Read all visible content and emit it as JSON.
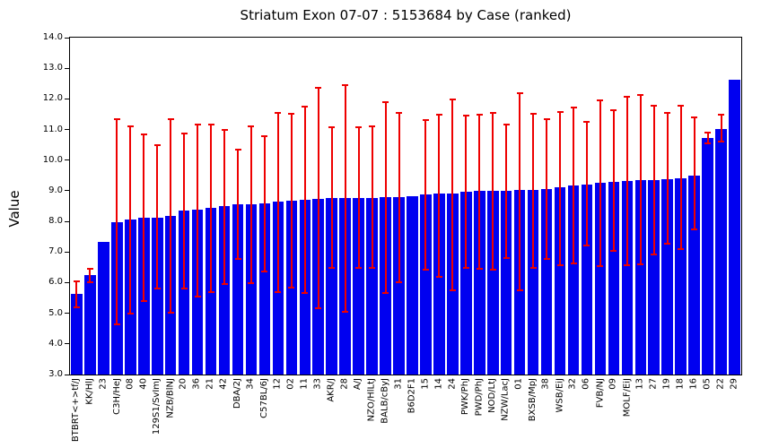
{
  "chart_data": {
    "type": "bar",
    "title": "Striatum Exon 07-07 : 5153684 by Case (ranked)",
    "xlabel": "",
    "ylabel": "Value",
    "ylim": [
      3.0,
      14.0
    ],
    "yticks": [
      3,
      4,
      5,
      6,
      7,
      8,
      9,
      10,
      11,
      12,
      13,
      14
    ],
    "ytick_labels": [
      "3.0",
      "4.0",
      "5.0",
      "6.0",
      "7.0",
      "8.0",
      "9.0",
      "10.0",
      "11.0",
      "12.0",
      "13.0",
      "14.0"
    ],
    "grid": false,
    "legend": false,
    "bar_color": "#0000f0",
    "error_color": "#ee0000",
    "categories": [
      "BTBRT<+>tf/J",
      "KK/HlJ",
      "23",
      "C3H/HeJ",
      "08",
      "40",
      "129S1/SvImJ",
      "NZB/BlNJ",
      "20",
      "36",
      "21",
      "42",
      "DBA/2J",
      "34",
      "C57BL/6J",
      "12",
      "02",
      "11",
      "33",
      "AKR/J",
      "28",
      "A/J",
      "NZO/HlLtJ",
      "BALB/cByJ",
      "31",
      "B6D2F1",
      "15",
      "14",
      "24",
      "PWK/PhJ",
      "PWD/PhJ",
      "NOD/LtJ",
      "NZW/LacJ",
      "01",
      "BXSB/MpJ",
      "38",
      "WSB/EiJ",
      "32",
      "06",
      "FVB/NJ",
      "09",
      "MOLF/EiJ",
      "13",
      "27",
      "19",
      "18",
      "16",
      "05",
      "22",
      "29"
    ],
    "values": [
      5.63,
      6.25,
      7.32,
      7.98,
      8.05,
      8.12,
      8.13,
      8.18,
      8.36,
      8.37,
      8.45,
      8.49,
      8.55,
      8.57,
      8.59,
      8.65,
      8.69,
      8.71,
      8.74,
      8.75,
      8.76,
      8.76,
      8.77,
      8.78,
      8.8,
      8.83,
      8.87,
      8.9,
      8.91,
      8.97,
      8.99,
      9.0,
      9.01,
      9.02,
      9.04,
      9.07,
      9.1,
      9.17,
      9.2,
      9.27,
      9.3,
      9.33,
      9.35,
      9.36,
      9.39,
      9.41,
      9.5,
      10.72,
      11.02,
      12.62
    ],
    "error_low": [
      5.2,
      6.02,
      null,
      4.65,
      5.0,
      5.4,
      5.8,
      5.03,
      5.8,
      5.55,
      5.68,
      5.96,
      6.76,
      5.98,
      6.35,
      5.7,
      5.85,
      5.65,
      5.17,
      6.49,
      5.05,
      6.49,
      6.48,
      5.65,
      6.0,
      null,
      6.42,
      6.2,
      5.75,
      6.49,
      6.46,
      6.41,
      6.81,
      5.76,
      6.49,
      6.78,
      6.58,
      6.63,
      7.2,
      6.54,
      7.03,
      6.56,
      6.59,
      6.93,
      7.26,
      7.1,
      7.73,
      10.56,
      10.61,
      null
    ],
    "error_high": [
      6.05,
      6.45,
      null,
      11.34,
      11.1,
      10.83,
      10.48,
      11.34,
      10.88,
      11.17,
      11.17,
      10.99,
      10.33,
      11.1,
      10.78,
      11.55,
      11.5,
      11.74,
      12.35,
      11.08,
      12.45,
      11.08,
      11.1,
      11.89,
      11.53,
      null,
      11.3,
      11.48,
      11.97,
      11.46,
      11.47,
      11.55,
      11.16,
      12.2,
      11.52,
      11.33,
      11.57,
      11.72,
      11.25,
      11.95,
      11.63,
      12.08,
      12.12,
      11.77,
      11.53,
      11.78,
      11.4,
      10.9,
      11.48,
      null
    ]
  }
}
